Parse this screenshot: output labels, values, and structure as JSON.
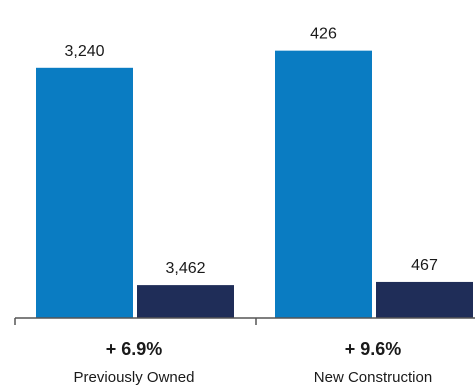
{
  "chart_data": {
    "type": "bar",
    "categories": [
      "Previously Owned",
      "New Construction"
    ],
    "category_changes": [
      "+ 6.9%",
      "+ 9.6%"
    ],
    "series": [
      {
        "values": [
          3240,
          3462
        ],
        "color": "#0a7cc2"
      },
      {
        "values": [
          426,
          467
        ],
        "color": "#1f2d58"
      }
    ],
    "value_labels": [
      [
        "3,240",
        "426"
      ],
      [
        "3,462",
        "467"
      ]
    ],
    "title": "",
    "xlabel": "",
    "ylabel": "",
    "ylim": [
      0,
      3600
    ],
    "grid": false,
    "legend": "none"
  }
}
